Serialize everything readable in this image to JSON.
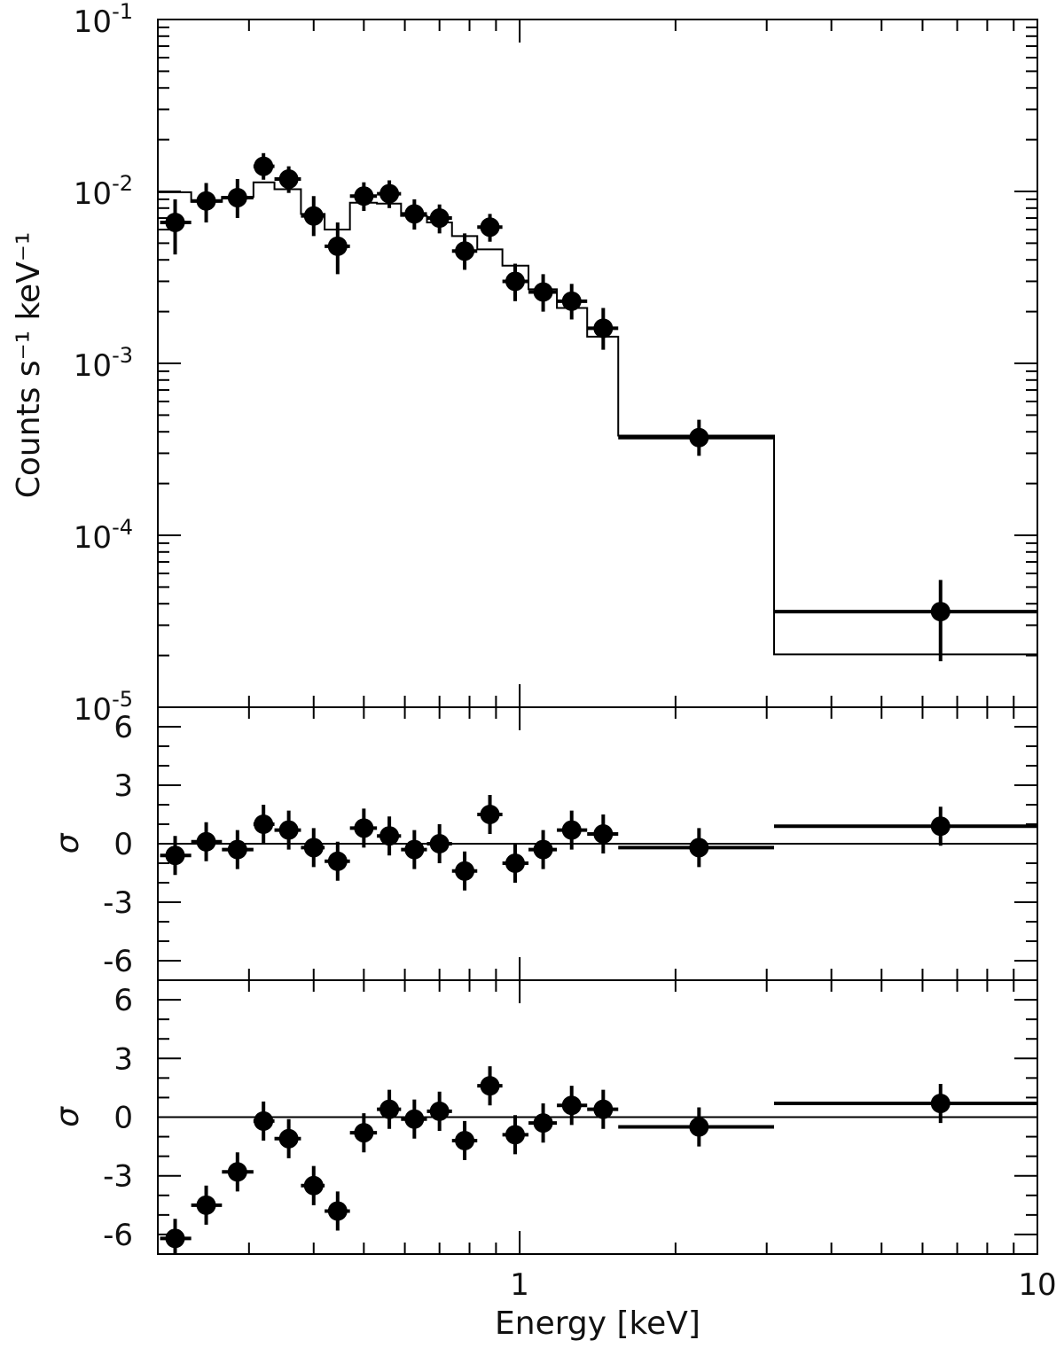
{
  "chart_data": {
    "type": "scatter",
    "x_axis": {
      "label": "Energy  [keV]",
      "scale": "log",
      "range": [
        0.2,
        10
      ],
      "tick_labels": [
        "1",
        "10"
      ]
    },
    "panels": [
      {
        "id": "spectrum",
        "ylabel": "Counts s⁻¹ keV⁻¹",
        "yscale": "log",
        "ylim": [
          1e-05,
          0.1
        ],
        "tick_labels": [
          {
            "value": 0.1,
            "base": "10",
            "exp": "-1"
          },
          {
            "value": 0.01,
            "base": "10",
            "exp": "-2"
          },
          {
            "value": 0.001,
            "base": "10",
            "exp": "-3"
          },
          {
            "value": 0.0001,
            "base": "10",
            "exp": "-4"
          },
          {
            "value": 1e-05,
            "base": "10",
            "exp": "-5"
          }
        ],
        "points": [
          {
            "x": 0.216,
            "xlo": 0.202,
            "xhi": 0.232,
            "y": 0.0066,
            "ylo": 0.0043,
            "yhi": 0.009
          },
          {
            "x": 0.248,
            "xlo": 0.232,
            "xhi": 0.266,
            "y": 0.0088,
            "ylo": 0.0066,
            "yhi": 0.0112
          },
          {
            "x": 0.285,
            "xlo": 0.266,
            "xhi": 0.306,
            "y": 0.0092,
            "ylo": 0.007,
            "yhi": 0.0118
          },
          {
            "x": 0.32,
            "xlo": 0.306,
            "xhi": 0.336,
            "y": 0.014,
            "ylo": 0.0117,
            "yhi": 0.0167
          },
          {
            "x": 0.358,
            "xlo": 0.336,
            "xhi": 0.378,
            "y": 0.0118,
            "ylo": 0.0098,
            "yhi": 0.014
          },
          {
            "x": 0.4,
            "xlo": 0.378,
            "xhi": 0.42,
            "y": 0.0072,
            "ylo": 0.0055,
            "yhi": 0.0094
          },
          {
            "x": 0.445,
            "xlo": 0.42,
            "xhi": 0.47,
            "y": 0.0048,
            "ylo": 0.0033,
            "yhi": 0.0066
          },
          {
            "x": 0.5,
            "xlo": 0.47,
            "xhi": 0.53,
            "y": 0.0094,
            "ylo": 0.0077,
            "yhi": 0.0113
          },
          {
            "x": 0.56,
            "xlo": 0.53,
            "xhi": 0.59,
            "y": 0.0097,
            "ylo": 0.008,
            "yhi": 0.0116
          },
          {
            "x": 0.626,
            "xlo": 0.59,
            "xhi": 0.662,
            "y": 0.0074,
            "ylo": 0.006,
            "yhi": 0.009
          },
          {
            "x": 0.7,
            "xlo": 0.662,
            "xhi": 0.74,
            "y": 0.007,
            "ylo": 0.0057,
            "yhi": 0.0084
          },
          {
            "x": 0.783,
            "xlo": 0.74,
            "xhi": 0.828,
            "y": 0.0045,
            "ylo": 0.0035,
            "yhi": 0.0057
          },
          {
            "x": 0.876,
            "xlo": 0.828,
            "xhi": 0.926,
            "y": 0.0062,
            "ylo": 0.0051,
            "yhi": 0.0074
          },
          {
            "x": 0.98,
            "xlo": 0.926,
            "xhi": 1.04,
            "y": 0.003,
            "ylo": 0.0023,
            "yhi": 0.0038
          },
          {
            "x": 1.11,
            "xlo": 1.04,
            "xhi": 1.18,
            "y": 0.0026,
            "ylo": 0.002,
            "yhi": 0.0033
          },
          {
            "x": 1.26,
            "xlo": 1.18,
            "xhi": 1.35,
            "y": 0.0023,
            "ylo": 0.0018,
            "yhi": 0.0029
          },
          {
            "x": 1.45,
            "xlo": 1.35,
            "xhi": 1.55,
            "y": 0.0016,
            "ylo": 0.0012,
            "yhi": 0.0021
          },
          {
            "x": 2.22,
            "xlo": 1.55,
            "xhi": 3.1,
            "y": 0.00037,
            "ylo": 0.00029,
            "yhi": 0.00047
          },
          {
            "x": 6.5,
            "xlo": 3.1,
            "xhi": 10.0,
            "y": 3.6e-05,
            "ylo": 1.85e-05,
            "yhi": 5.5e-05
          }
        ],
        "model_step": {
          "edges": [
            0.2,
            0.232,
            0.266,
            0.306,
            0.336,
            0.378,
            0.42,
            0.47,
            0.53,
            0.59,
            0.662,
            0.74,
            0.828,
            0.926,
            1.04,
            1.18,
            1.35,
            1.55,
            3.1,
            10.0
          ],
          "values": [
            0.0099,
            0.0087,
            0.0093,
            0.0113,
            0.0103,
            0.0074,
            0.006,
            0.0086,
            0.0085,
            0.0072,
            0.0066,
            0.0055,
            0.0046,
            0.0037,
            0.0027,
            0.0021,
            0.00143,
            0.00038,
            2.03e-05
          ]
        }
      },
      {
        "id": "residuals-1",
        "ylabel": "σ",
        "yscale": "linear",
        "ylim": [
          -7,
          7
        ],
        "ticks": [
          6,
          3,
          0,
          -3,
          -6
        ],
        "tick_labels": [
          "6",
          "3",
          "0",
          "-3",
          "-6"
        ],
        "zero_line": true,
        "points": [
          {
            "x": 0.216,
            "xlo": 0.202,
            "xhi": 0.232,
            "y": -0.6,
            "ylo": -1.6,
            "yhi": 0.4
          },
          {
            "x": 0.248,
            "xlo": 0.232,
            "xhi": 0.266,
            "y": 0.1,
            "ylo": -0.9,
            "yhi": 1.1
          },
          {
            "x": 0.285,
            "xlo": 0.266,
            "xhi": 0.306,
            "y": -0.3,
            "ylo": -1.3,
            "yhi": 0.7
          },
          {
            "x": 0.32,
            "xlo": 0.306,
            "xhi": 0.336,
            "y": 1.0,
            "ylo": 0.0,
            "yhi": 2.0
          },
          {
            "x": 0.358,
            "xlo": 0.336,
            "xhi": 0.378,
            "y": 0.7,
            "ylo": -0.3,
            "yhi": 1.7
          },
          {
            "x": 0.4,
            "xlo": 0.378,
            "xhi": 0.42,
            "y": -0.2,
            "ylo": -1.2,
            "yhi": 0.8
          },
          {
            "x": 0.445,
            "xlo": 0.42,
            "xhi": 0.47,
            "y": -0.9,
            "ylo": -1.9,
            "yhi": 0.1
          },
          {
            "x": 0.5,
            "xlo": 0.47,
            "xhi": 0.53,
            "y": 0.8,
            "ylo": -0.2,
            "yhi": 1.8
          },
          {
            "x": 0.56,
            "xlo": 0.53,
            "xhi": 0.59,
            "y": 0.4,
            "ylo": -0.6,
            "yhi": 1.4
          },
          {
            "x": 0.626,
            "xlo": 0.59,
            "xhi": 0.662,
            "y": -0.3,
            "ylo": -1.3,
            "yhi": 0.7
          },
          {
            "x": 0.7,
            "xlo": 0.662,
            "xhi": 0.74,
            "y": 0.0,
            "ylo": -1.0,
            "yhi": 1.0
          },
          {
            "x": 0.783,
            "xlo": 0.74,
            "xhi": 0.828,
            "y": -1.4,
            "ylo": -2.4,
            "yhi": -0.4
          },
          {
            "x": 0.876,
            "xlo": 0.828,
            "xhi": 0.926,
            "y": 1.5,
            "ylo": 0.5,
            "yhi": 2.5
          },
          {
            "x": 0.98,
            "xlo": 0.926,
            "xhi": 1.04,
            "y": -1.0,
            "ylo": -2.0,
            "yhi": 0.0
          },
          {
            "x": 1.11,
            "xlo": 1.04,
            "xhi": 1.18,
            "y": -0.3,
            "ylo": -1.3,
            "yhi": 0.7
          },
          {
            "x": 1.26,
            "xlo": 1.18,
            "xhi": 1.35,
            "y": 0.7,
            "ylo": -0.3,
            "yhi": 1.7
          },
          {
            "x": 1.45,
            "xlo": 1.35,
            "xhi": 1.55,
            "y": 0.5,
            "ylo": -0.5,
            "yhi": 1.5
          },
          {
            "x": 2.22,
            "xlo": 1.55,
            "xhi": 3.1,
            "y": -0.2,
            "ylo": -1.2,
            "yhi": 0.8
          },
          {
            "x": 6.5,
            "xlo": 3.1,
            "xhi": 10.0,
            "y": 0.9,
            "ylo": -0.1,
            "yhi": 1.9
          }
        ]
      },
      {
        "id": "residuals-2",
        "ylabel": "σ",
        "yscale": "linear",
        "ylim": [
          -7,
          7
        ],
        "ticks": [
          6,
          3,
          0,
          -3,
          -6
        ],
        "tick_labels": [
          "6",
          "3",
          "0",
          "-3",
          "-6"
        ],
        "zero_line": true,
        "points": [
          {
            "x": 0.216,
            "xlo": 0.202,
            "xhi": 0.232,
            "y": -6.2,
            "ylo": -7.0,
            "yhi": -5.2
          },
          {
            "x": 0.248,
            "xlo": 0.232,
            "xhi": 0.266,
            "y": -4.5,
            "ylo": -5.5,
            "yhi": -3.5
          },
          {
            "x": 0.285,
            "xlo": 0.266,
            "xhi": 0.306,
            "y": -2.8,
            "ylo": -3.8,
            "yhi": -1.8
          },
          {
            "x": 0.32,
            "xlo": 0.306,
            "xhi": 0.336,
            "y": -0.2,
            "ylo": -1.2,
            "yhi": 0.8
          },
          {
            "x": 0.358,
            "xlo": 0.336,
            "xhi": 0.378,
            "y": -1.1,
            "ylo": -2.1,
            "yhi": -0.1
          },
          {
            "x": 0.4,
            "xlo": 0.378,
            "xhi": 0.42,
            "y": -3.5,
            "ylo": -4.5,
            "yhi": -2.5
          },
          {
            "x": 0.445,
            "xlo": 0.42,
            "xhi": 0.47,
            "y": -4.8,
            "ylo": -5.8,
            "yhi": -3.8
          },
          {
            "x": 0.5,
            "xlo": 0.47,
            "xhi": 0.53,
            "y": -0.8,
            "ylo": -1.8,
            "yhi": 0.2
          },
          {
            "x": 0.56,
            "xlo": 0.53,
            "xhi": 0.59,
            "y": 0.4,
            "ylo": -0.6,
            "yhi": 1.4
          },
          {
            "x": 0.626,
            "xlo": 0.59,
            "xhi": 0.662,
            "y": -0.1,
            "ylo": -1.1,
            "yhi": 0.9
          },
          {
            "x": 0.7,
            "xlo": 0.662,
            "xhi": 0.74,
            "y": 0.3,
            "ylo": -0.7,
            "yhi": 1.3
          },
          {
            "x": 0.783,
            "xlo": 0.74,
            "xhi": 0.828,
            "y": -1.2,
            "ylo": -2.2,
            "yhi": -0.2
          },
          {
            "x": 0.876,
            "xlo": 0.828,
            "xhi": 0.926,
            "y": 1.6,
            "ylo": 0.6,
            "yhi": 2.6
          },
          {
            "x": 0.98,
            "xlo": 0.926,
            "xhi": 1.04,
            "y": -0.9,
            "ylo": -1.9,
            "yhi": 0.1
          },
          {
            "x": 1.11,
            "xlo": 1.04,
            "xhi": 1.18,
            "y": -0.3,
            "ylo": -1.3,
            "yhi": 0.7
          },
          {
            "x": 1.26,
            "xlo": 1.18,
            "xhi": 1.35,
            "y": 0.6,
            "ylo": -0.4,
            "yhi": 1.6
          },
          {
            "x": 1.45,
            "xlo": 1.35,
            "xhi": 1.55,
            "y": 0.4,
            "ylo": -0.6,
            "yhi": 1.4
          },
          {
            "x": 2.22,
            "xlo": 1.55,
            "xhi": 3.1,
            "y": -0.5,
            "ylo": -1.5,
            "yhi": 0.5
          },
          {
            "x": 6.5,
            "xlo": 3.1,
            "xhi": 10.0,
            "y": 0.7,
            "ylo": -0.3,
            "yhi": 1.7
          }
        ]
      }
    ],
    "grid": false,
    "legend": "none"
  }
}
